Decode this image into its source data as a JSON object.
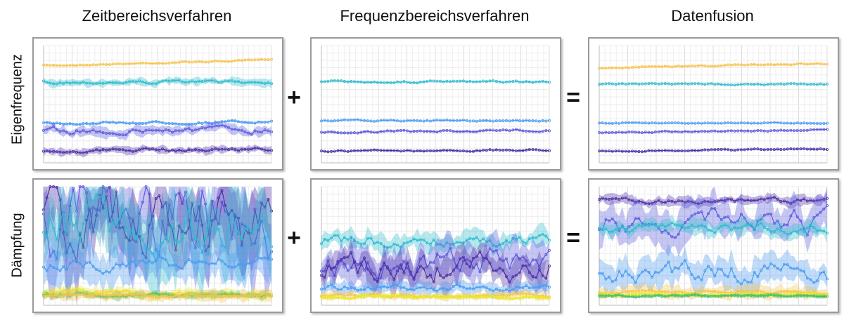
{
  "columns": [
    "Zeitbereichsverfahren",
    "Frequenzbereichsverfahren",
    "Datenfusion"
  ],
  "rows": [
    "Eigenfrequenz",
    "Dämpfung"
  ],
  "operators": {
    "plus": "+",
    "equals": "="
  },
  "series_colors": [
    "#f7c34a",
    "#2ebccf",
    "#4a9cf0",
    "#5b5be0",
    "#4b2fa6",
    "#e8e82a",
    "#3fbf6a"
  ]
}
